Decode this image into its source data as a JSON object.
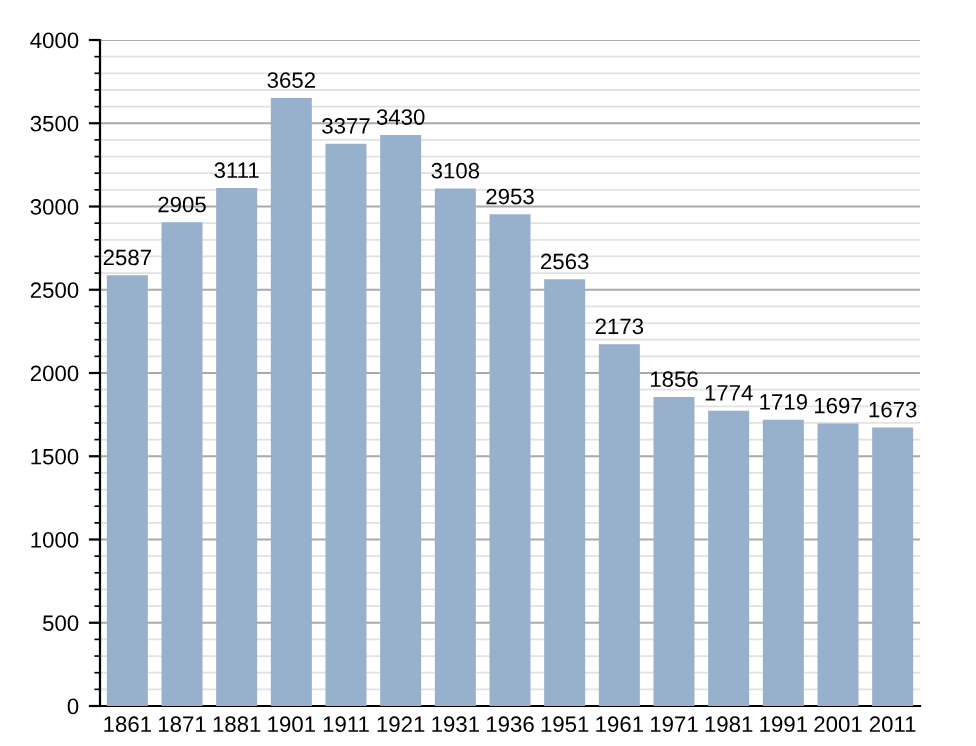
{
  "chart_data": {
    "type": "bar",
    "categories": [
      "1861",
      "1871",
      "1881",
      "1901",
      "1911",
      "1921",
      "1931",
      "1936",
      "1951",
      "1961",
      "1971",
      "1981",
      "1991",
      "2001",
      "2011"
    ],
    "values": [
      2587,
      2905,
      3111,
      3652,
      3377,
      3430,
      3108,
      2953,
      2563,
      2173,
      1856,
      1774,
      1719,
      1697,
      1673
    ],
    "color": "#97b0cc",
    "ylim": [
      0,
      4000
    ],
    "yticks": [
      0,
      500,
      1000,
      1500,
      2000,
      2500,
      3000,
      3500,
      4000
    ],
    "grid": "y",
    "data_labels": true
  }
}
